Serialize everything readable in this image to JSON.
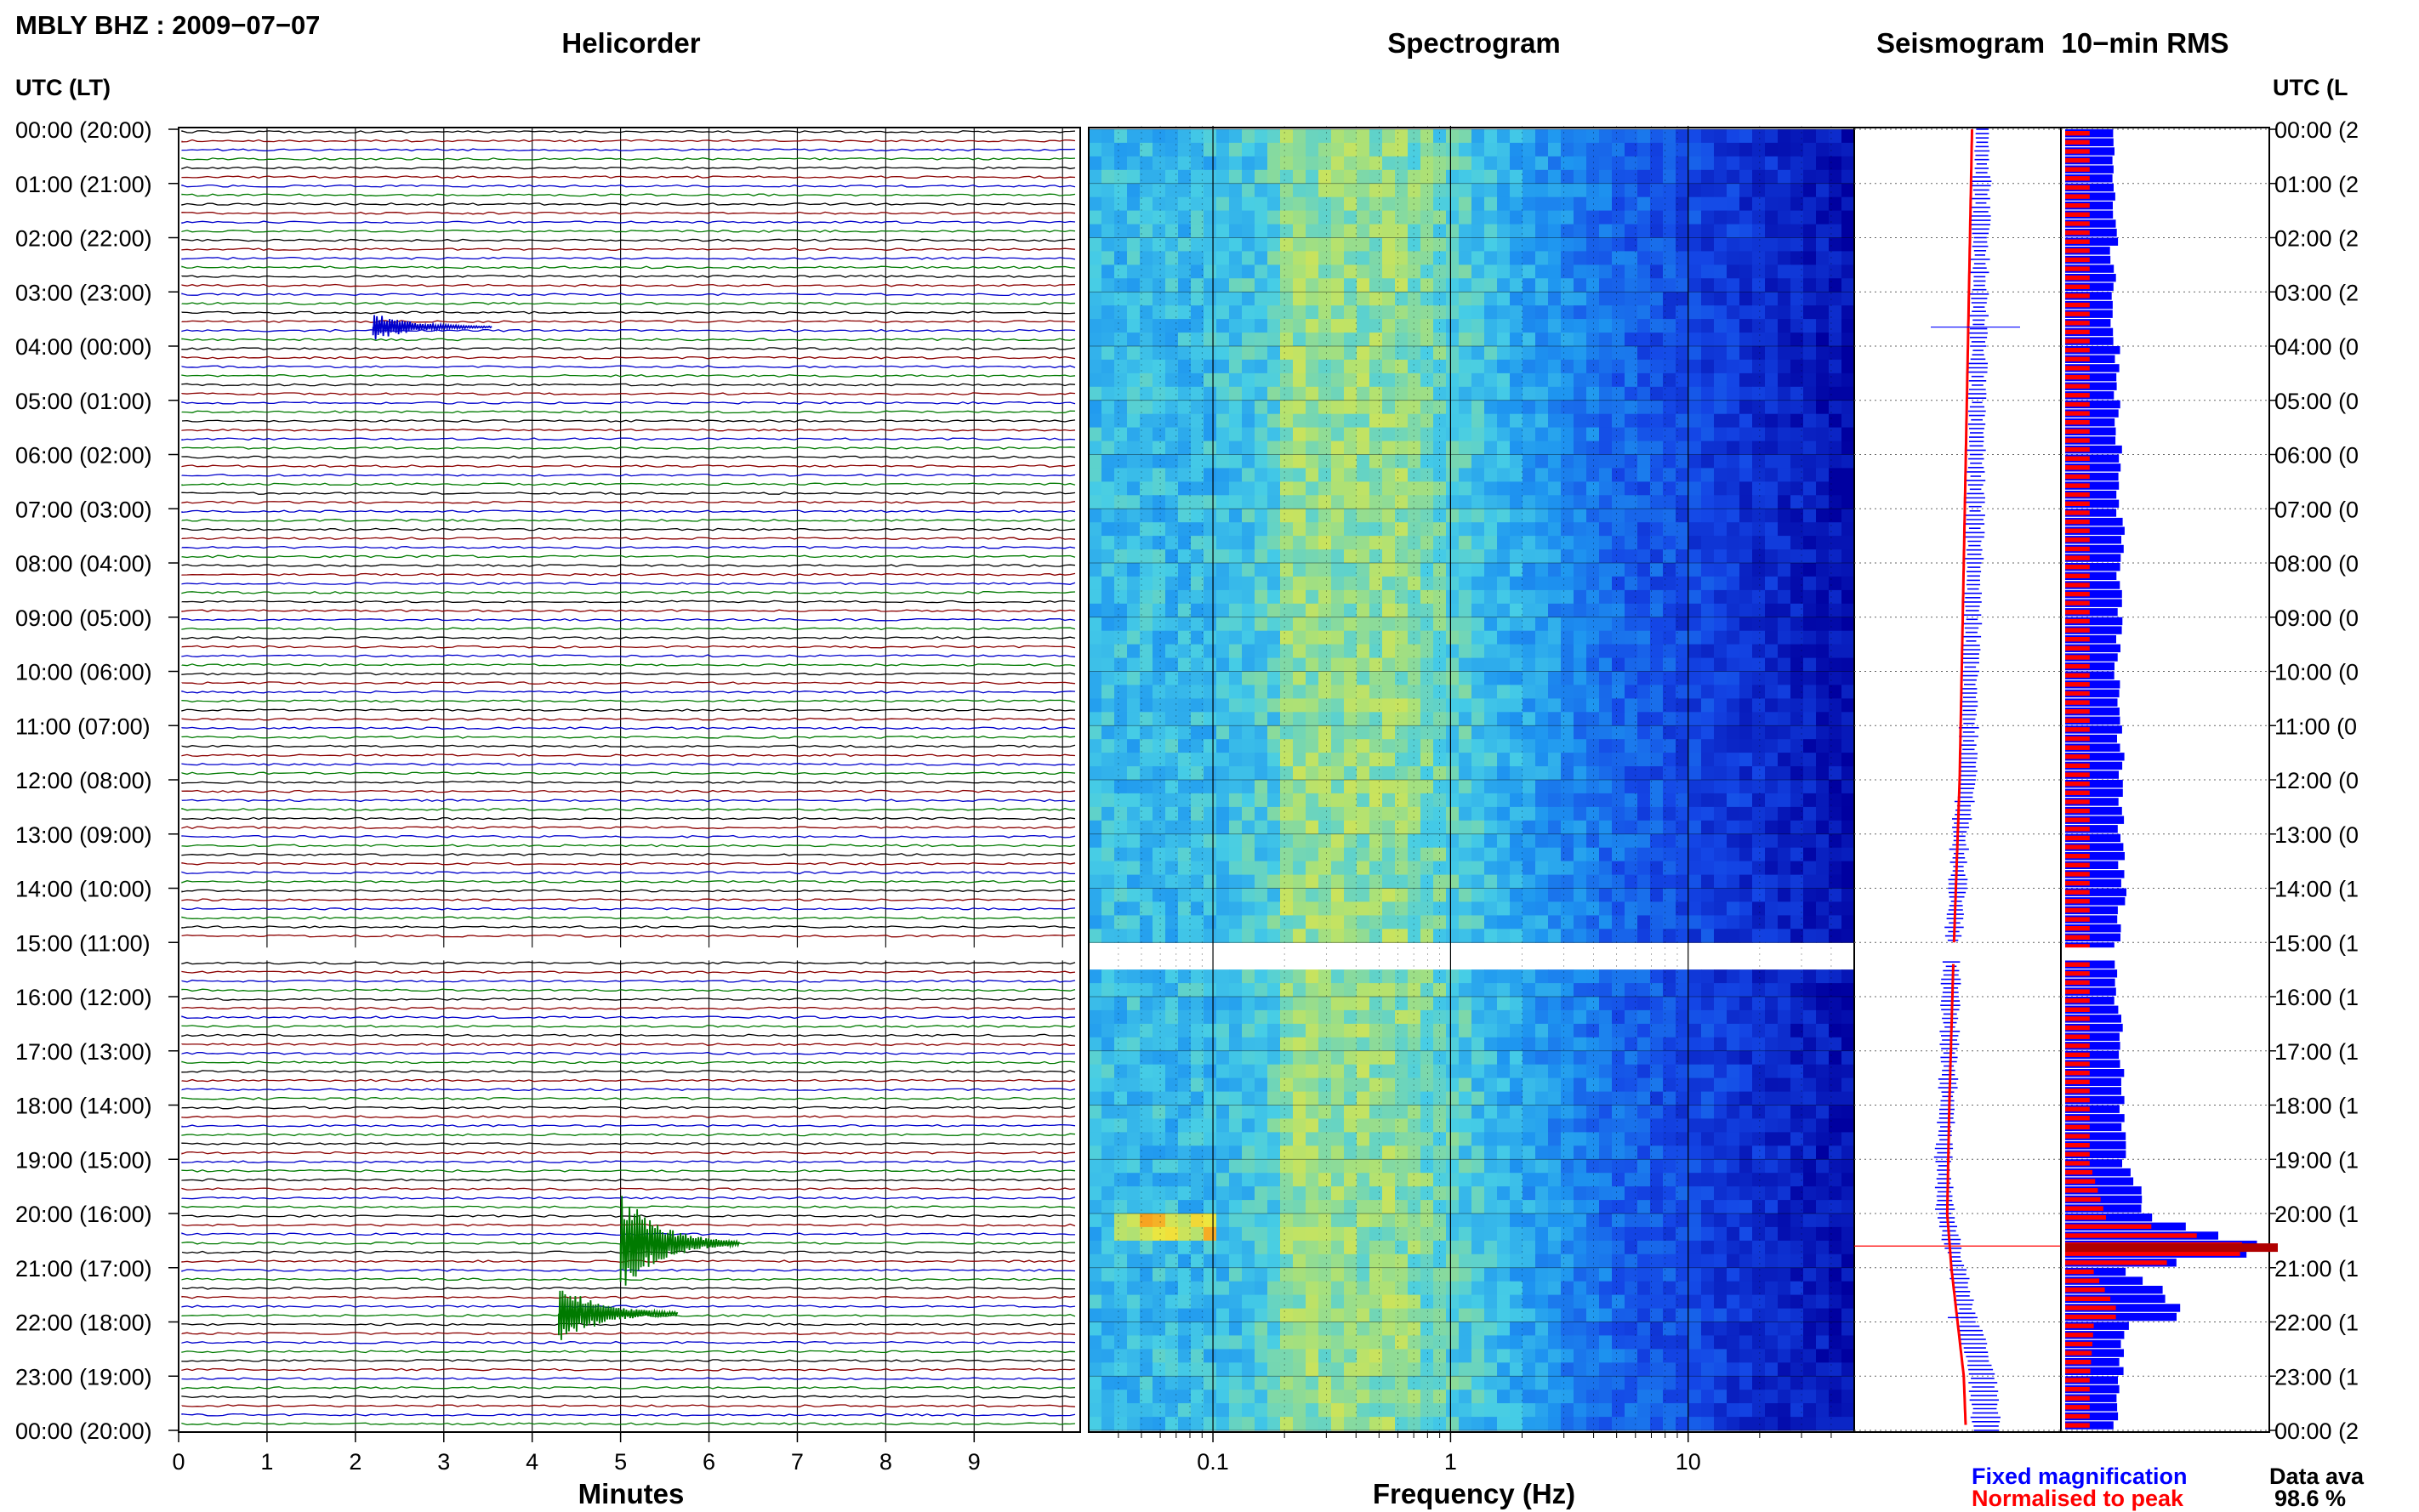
{
  "header": {
    "station_title": "MBLY BHZ : 2009−07−07"
  },
  "panels": {
    "helicorder": "Helicorder",
    "spectrogram": "Spectrogram",
    "seismogram": "Seismogram",
    "rms": "10−min RMS"
  },
  "axis_left_title": "UTC (LT)",
  "axis_right_title": "UTC (L",
  "time_labels_left": [
    "00:00 (20:00)",
    "01:00 (21:00)",
    "02:00 (22:00)",
    "03:00 (23:00)",
    "04:00 (00:00)",
    "05:00 (01:00)",
    "06:00 (02:00)",
    "07:00 (03:00)",
    "08:00 (04:00)",
    "09:00 (05:00)",
    "10:00 (06:00)",
    "11:00 (07:00)",
    "12:00 (08:00)",
    "13:00 (09:00)",
    "14:00 (10:00)",
    "15:00 (11:00)",
    "16:00 (12:00)",
    "17:00 (13:00)",
    "18:00 (14:00)",
    "19:00 (15:00)",
    "20:00 (16:00)",
    "21:00 (17:00)",
    "22:00 (18:00)",
    "23:00 (19:00)",
    "00:00 (20:00)"
  ],
  "time_labels_right": [
    "00:00 (2",
    "01:00 (2",
    "02:00 (2",
    "03:00 (2",
    "04:00 (0",
    "05:00 (0",
    "06:00 (0",
    "07:00 (0",
    "08:00 (0",
    "09:00 (0",
    "10:00 (0",
    "11:00 (0",
    "12:00 (0",
    "13:00 (0",
    "14:00 (1",
    "15:00 (1",
    "16:00 (1",
    "17:00 (1",
    "18:00 (1",
    "19:00 (1",
    "20:00 (1",
    "21:00 (1",
    "22:00 (1",
    "23:00 (1",
    "00:00 (2"
  ],
  "minutes_ticks": [
    "0",
    "1",
    "2",
    "3",
    "4",
    "5",
    "6",
    "7",
    "8",
    "9"
  ],
  "minutes_label": "Minutes",
  "frequency_ticks": [
    "0.1",
    "1",
    "10"
  ],
  "frequency_label": "Frequency (Hz)",
  "legend": {
    "fixed": "Fixed magnification",
    "normalised": "Normalised to peak",
    "fixed_color": "#0000ff",
    "normalised_color": "#ff0000"
  },
  "data_availability": {
    "label": "Data ava",
    "value": "98.6 %"
  },
  "colors": {
    "trace_cycle": [
      "#000000",
      "#8b0000",
      "#0000cc",
      "#007a00"
    ],
    "grid": "#9a9a9a"
  },
  "chart_data": [
    {
      "type": "line",
      "title": "Helicorder",
      "xlabel": "Minutes",
      "xlim": [
        0,
        10
      ],
      "ylabel": "UTC (LT)",
      "traces_per_hour": 6,
      "gap_hours": [
        15.0,
        15.3
      ],
      "events": [
        {
          "hour_row": 3.6,
          "minute": 2.2,
          "amplitude": 0.6,
          "color_index": 2
        },
        {
          "hour_row": 20.5,
          "minute": 5.0,
          "amplitude": 2.2,
          "color_index": 3
        },
        {
          "hour_row": 21.8,
          "minute": 4.3,
          "amplitude": 1.4,
          "color_index": 3
        }
      ]
    },
    {
      "type": "heatmap",
      "title": "Spectrogram",
      "xlabel": "Frequency (Hz)",
      "x_scale": "log",
      "xlim": [
        0.03,
        50
      ],
      "ylim": [
        0,
        24
      ],
      "gap_hours": [
        15.0,
        15.3
      ],
      "peak_band_hz": [
        0.2,
        0.6
      ]
    },
    {
      "type": "line",
      "title": "Seismogram",
      "series": [
        {
          "name": "Fixed magnification",
          "hours": [
            0,
            2,
            4,
            6,
            8,
            10,
            12,
            13,
            14,
            15.3,
            17,
            18,
            19,
            20,
            21,
            22,
            23,
            24
          ],
          "values": [
            0.62,
            0.61,
            0.6,
            0.59,
            0.58,
            0.56,
            0.55,
            0.51,
            0.5,
            0.47,
            0.46,
            0.45,
            0.43,
            0.44,
            0.5,
            0.55,
            0.62,
            0.64
          ]
        },
        {
          "name": "Normalised to peak",
          "hours": [
            0,
            4,
            8,
            12,
            15.3,
            18,
            20,
            21,
            22,
            23,
            24
          ],
          "values": [
            0.57,
            0.55,
            0.53,
            0.51,
            0.48,
            0.46,
            0.45,
            0.47,
            0.5,
            0.53,
            0.54
          ]
        }
      ]
    },
    {
      "type": "bar",
      "title": "10−min RMS",
      "series_names": [
        "Fixed magnification",
        "Normalised to peak"
      ],
      "hours": [
        0,
        1,
        2,
        3,
        4,
        5,
        6,
        7,
        8,
        9,
        10,
        11,
        12,
        13,
        14,
        15.3,
        16,
        17,
        18,
        19,
        20,
        20.6,
        21,
        21.8,
        22,
        23,
        24
      ],
      "fixed_values": [
        0.22,
        0.24,
        0.24,
        0.23,
        0.25,
        0.26,
        0.27,
        0.27,
        0.27,
        0.26,
        0.26,
        0.27,
        0.27,
        0.27,
        0.28,
        0.24,
        0.26,
        0.27,
        0.27,
        0.28,
        0.42,
        1.0,
        0.3,
        0.65,
        0.3,
        0.27,
        0.25
      ],
      "normalised_values": [
        0.12,
        0.12,
        0.12,
        0.12,
        0.12,
        0.12,
        0.12,
        0.12,
        0.12,
        0.12,
        0.12,
        0.12,
        0.12,
        0.12,
        0.12,
        0.12,
        0.12,
        0.12,
        0.12,
        0.12,
        0.2,
        1.0,
        0.14,
        0.27,
        0.14,
        0.12,
        0.12
      ]
    }
  ]
}
